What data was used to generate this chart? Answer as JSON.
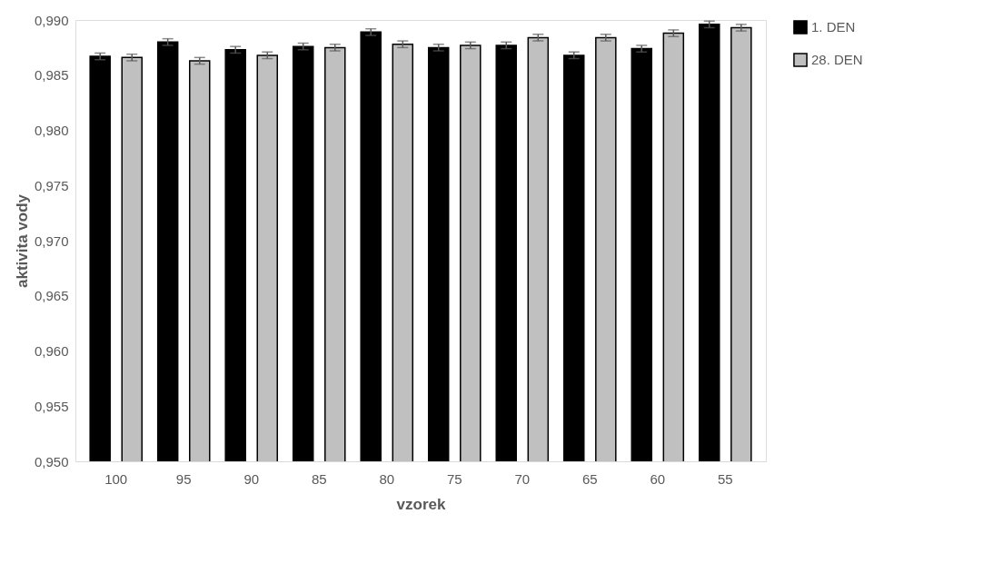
{
  "chart_data": {
    "type": "bar",
    "xlabel": "vzorek",
    "ylabel": "aktivita vody",
    "categories": [
      "100",
      "95",
      "90",
      "85",
      "80",
      "75",
      "70",
      "65",
      "60",
      "55"
    ],
    "series": [
      {
        "name": "1. DEN",
        "color": "#000000",
        "values": [
          0.9867,
          0.988,
          0.9873,
          0.9876,
          0.9889,
          0.9875,
          0.9877,
          0.9868,
          0.9874,
          0.9896
        ],
        "errors": [
          0.0003,
          0.0003,
          0.0003,
          0.0003,
          0.0003,
          0.0003,
          0.0003,
          0.0003,
          0.0003,
          0.0003
        ]
      },
      {
        "name": "28. DEN",
        "color": "#c0c0c0",
        "values": [
          0.9866,
          0.9863,
          0.9868,
          0.9875,
          0.9878,
          0.9877,
          0.9884,
          0.9884,
          0.9888,
          0.9893
        ],
        "errors": [
          0.0003,
          0.0003,
          0.0003,
          0.0003,
          0.0003,
          0.0003,
          0.0003,
          0.0003,
          0.0003,
          0.0003
        ]
      }
    ],
    "ylim": [
      0.95,
      0.99
    ],
    "yticks": [
      {
        "value": 0.95,
        "label": "0,950"
      },
      {
        "value": 0.955,
        "label": "0,955"
      },
      {
        "value": 0.96,
        "label": "0,960"
      },
      {
        "value": 0.965,
        "label": "0,965"
      },
      {
        "value": 0.97,
        "label": "0,970"
      },
      {
        "value": 0.975,
        "label": "0,975"
      },
      {
        "value": 0.98,
        "label": "0,980"
      },
      {
        "value": 0.985,
        "label": "0,985"
      },
      {
        "value": 0.99,
        "label": "0,990"
      }
    ],
    "grid": false,
    "legend": "right"
  }
}
